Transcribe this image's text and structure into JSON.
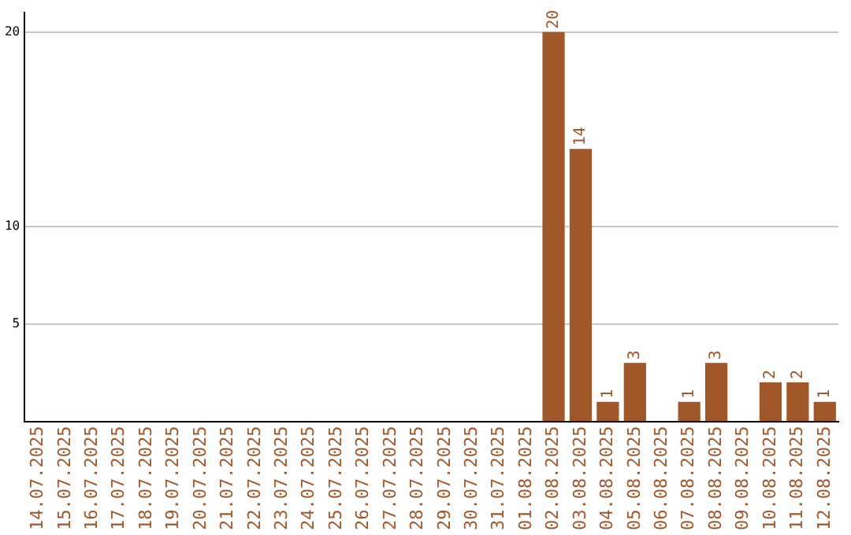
{
  "chart_data": {
    "type": "bar",
    "categories": [
      "14.07.2025",
      "15.07.2025",
      "16.07.2025",
      "17.07.2025",
      "18.07.2025",
      "19.07.2025",
      "20.07.2025",
      "21.07.2025",
      "22.07.2025",
      "23.07.2025",
      "24.07.2025",
      "25.07.2025",
      "26.07.2025",
      "27.07.2025",
      "28.07.2025",
      "29.07.2025",
      "30.07.2025",
      "31.07.2025",
      "01.08.2025",
      "02.08.2025",
      "03.08.2025",
      "04.08.2025",
      "05.08.2025",
      "06.08.2025",
      "07.08.2025",
      "08.08.2025",
      "09.08.2025",
      "10.08.2025",
      "11.08.2025",
      "12.08.2025"
    ],
    "values": [
      0,
      0,
      0,
      0,
      0,
      0,
      0,
      0,
      0,
      0,
      0,
      0,
      0,
      0,
      0,
      0,
      0,
      0,
      0,
      20,
      14,
      1,
      3,
      0,
      1,
      3,
      0,
      2,
      2,
      1
    ],
    "value_labels": [
      null,
      null,
      null,
      null,
      null,
      null,
      null,
      null,
      null,
      null,
      null,
      null,
      null,
      null,
      null,
      null,
      null,
      null,
      null,
      "20",
      "14",
      "1",
      "3",
      null,
      "1",
      "3",
      null,
      "2",
      "2",
      "1"
    ],
    "color": "#a0582a",
    "ylim": [
      0,
      21
    ],
    "yticks": [
      5,
      10,
      20
    ],
    "grid": "y"
  }
}
